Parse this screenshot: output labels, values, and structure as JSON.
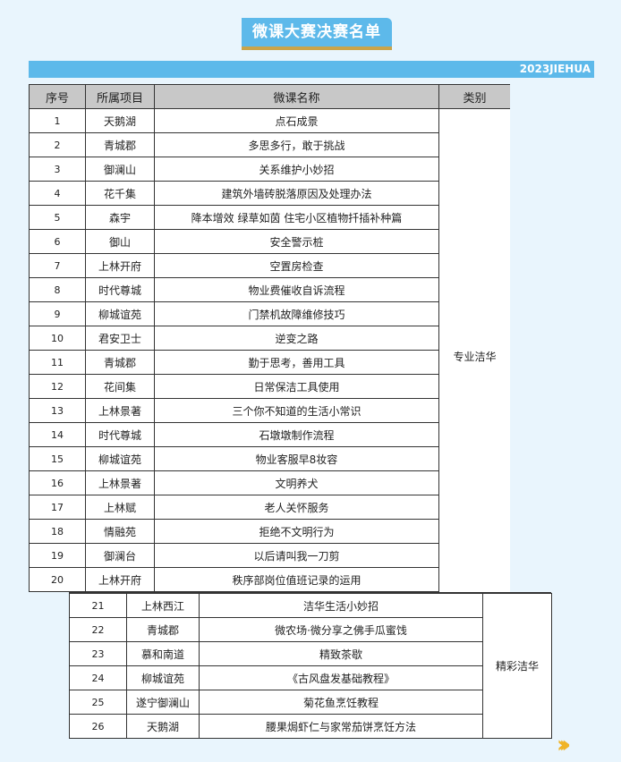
{
  "title": "微课大赛决赛名单",
  "banner": "2023JIEHUA",
  "headers": [
    "序号",
    "所属项目",
    "微课名称",
    "类别"
  ],
  "group1": {
    "category": "专业洁华",
    "rows": [
      [
        "1",
        "天鹅湖",
        "点石成景"
      ],
      [
        "2",
        "青城郡",
        "多思多行，敢于挑战"
      ],
      [
        "3",
        "御澜山",
        "关系维护小妙招"
      ],
      [
        "4",
        "花千集",
        "建筑外墙砖脱落原因及处理办法"
      ],
      [
        "5",
        "森宇",
        "降本增效  绿草如茵  住宅小区植物扦插补种篇"
      ],
      [
        "6",
        "御山",
        "安全警示桩"
      ],
      [
        "7",
        "上林开府",
        "空置房检查"
      ],
      [
        "8",
        "时代尊城",
        "物业费催收自诉流程"
      ],
      [
        "9",
        "柳城谊苑",
        "门禁机故障维修技巧"
      ],
      [
        "10",
        "君安卫士",
        "逆变之路"
      ],
      [
        "11",
        "青城郡",
        "勤于思考，善用工具"
      ],
      [
        "12",
        "花间集",
        "日常保洁工具使用"
      ],
      [
        "13",
        "上林景著",
        "三个你不知道的生活小常识"
      ],
      [
        "14",
        "时代尊城",
        "石墩墩制作流程"
      ],
      [
        "15",
        "柳城谊苑",
        "物业客服早8妆容"
      ],
      [
        "16",
        "上林景著",
        "文明养犬"
      ],
      [
        "17",
        "上林赋",
        "老人关怀服务"
      ],
      [
        "18",
        "情融苑",
        "拒绝不文明行为"
      ],
      [
        "19",
        "御澜台",
        "以后请叫我一刀剪"
      ],
      [
        "20",
        "上林开府",
        "秩序部岗位值班记录的运用"
      ]
    ]
  },
  "group2": {
    "category": "精彩洁华",
    "rows": [
      [
        "21",
        "上林西江",
        "洁华生活小妙招"
      ],
      [
        "22",
        "青城郡",
        "微农场·微分享之佛手瓜蜜饯"
      ],
      [
        "23",
        "慕和南道",
        "精致茶歇"
      ],
      [
        "24",
        "柳城谊苑",
        "《古风盘发基础教程》"
      ],
      [
        "25",
        "遂宁御澜山",
        "菊花鱼烹饪教程"
      ],
      [
        "26",
        "天鹅湖",
        "腰果焗虾仁与家常茄饼烹饪方法"
      ]
    ]
  },
  "next_icon": "chevron-right-triple-icon",
  "colors": {
    "accent": "#5db9ea",
    "gold": "#c9a44a",
    "chevron": "#f0b429"
  }
}
